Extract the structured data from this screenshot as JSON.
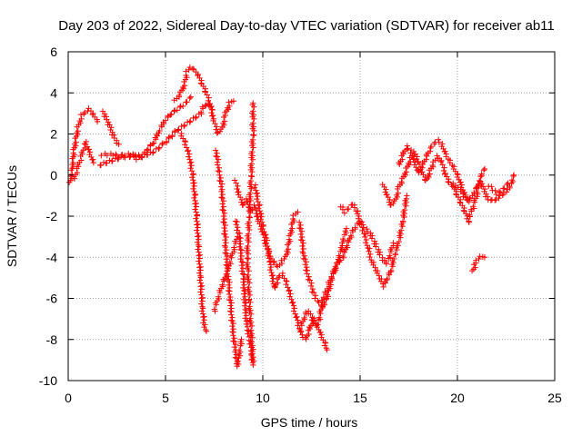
{
  "chart_data": {
    "type": "scatter",
    "title": "Day 203 of 2022, Sidereal Day-to-day VTEC variation (SDTVAR) for receiver ab11",
    "xlabel": "GPS time / hours",
    "ylabel": "SDTVAR / TECUs",
    "xlim": [
      0,
      25
    ],
    "ylim": [
      -10,
      6
    ],
    "xticks": [
      0,
      5,
      10,
      15,
      20,
      25
    ],
    "yticks": [
      -10,
      -8,
      -6,
      -4,
      -2,
      0,
      2,
      4,
      6
    ],
    "grid": true,
    "marker": "+",
    "color": "#ff0000",
    "traces": [
      [
        [
          0.1,
          -0.4
        ],
        [
          0.2,
          0.2
        ],
        [
          0.3,
          1.2
        ],
        [
          0.5,
          2.3
        ],
        [
          0.7,
          2.9
        ],
        [
          0.9,
          3.0
        ],
        [
          1.1,
          3.2
        ],
        [
          1.3,
          2.9
        ],
        [
          1.5,
          2.6
        ]
      ],
      [
        [
          0.3,
          -0.2
        ],
        [
          0.5,
          0.4
        ],
        [
          0.7,
          1.0
        ],
        [
          0.9,
          1.6
        ],
        [
          1.1,
          1.1
        ],
        [
          1.3,
          0.6
        ]
      ],
      [
        [
          1.8,
          3.1
        ],
        [
          2.0,
          2.7
        ],
        [
          2.2,
          2.2
        ],
        [
          2.4,
          1.8
        ],
        [
          2.6,
          1.5
        ]
      ],
      [
        [
          1.6,
          0.5
        ],
        [
          1.9,
          0.6
        ],
        [
          2.2,
          0.7
        ],
        [
          2.5,
          0.8
        ],
        [
          2.8,
          0.9
        ],
        [
          3.1,
          0.9
        ],
        [
          3.4,
          1.0
        ],
        [
          3.7,
          0.9
        ],
        [
          4.0,
          1.0
        ],
        [
          4.3,
          1.1
        ],
        [
          4.6,
          1.3
        ],
        [
          5.0,
          1.6
        ],
        [
          5.3,
          1.9
        ],
        [
          5.6,
          2.2
        ],
        [
          5.9,
          2.4
        ],
        [
          6.2,
          2.6
        ],
        [
          6.5,
          2.8
        ],
        [
          6.8,
          3.0
        ],
        [
          7.0,
          3.4
        ],
        [
          7.2,
          3.5
        ],
        [
          7.4,
          3.2
        ]
      ],
      [
        [
          1.7,
          1.0
        ],
        [
          2.0,
          1.0
        ],
        [
          2.3,
          1.0
        ],
        [
          2.6,
          0.9
        ],
        [
          2.9,
          1.0
        ],
        [
          3.2,
          1.0
        ],
        [
          3.5,
          0.8
        ],
        [
          3.8,
          0.9
        ],
        [
          4.1,
          1.3
        ],
        [
          4.4,
          1.6
        ],
        [
          4.7,
          2.2
        ],
        [
          5.0,
          2.7
        ],
        [
          5.3,
          3.0
        ],
        [
          5.6,
          3.2
        ],
        [
          5.9,
          3.4
        ],
        [
          6.1,
          3.6
        ],
        [
          6.3,
          3.8
        ]
      ],
      [
        [
          5.5,
          3.6
        ],
        [
          5.8,
          4.0
        ],
        [
          6.0,
          4.5
        ],
        [
          6.1,
          5.0
        ],
        [
          6.3,
          5.2
        ],
        [
          6.5,
          5.1
        ],
        [
          6.7,
          4.8
        ],
        [
          6.9,
          4.4
        ],
        [
          7.1,
          4.0
        ],
        [
          7.3,
          3.4
        ],
        [
          7.5,
          2.6
        ],
        [
          7.7,
          2.0
        ],
        [
          7.9,
          2.2
        ],
        [
          8.1,
          3.0
        ],
        [
          8.3,
          3.5
        ],
        [
          8.5,
          3.6
        ]
      ],
      [
        [
          5.8,
          2.0
        ],
        [
          6.0,
          1.6
        ],
        [
          6.2,
          1.0
        ],
        [
          6.4,
          0.0
        ],
        [
          6.5,
          -1.0
        ],
        [
          6.6,
          -2.0
        ],
        [
          6.7,
          -3.5
        ],
        [
          6.8,
          -5.0
        ],
        [
          6.9,
          -6.5
        ],
        [
          7.0,
          -7.3
        ],
        [
          7.1,
          -7.6
        ]
      ],
      [
        [
          7.6,
          1.2
        ],
        [
          7.7,
          0.5
        ],
        [
          7.8,
          0.0
        ],
        [
          7.9,
          -0.8
        ],
        [
          8.0,
          -2.0
        ],
        [
          8.1,
          -3.5
        ],
        [
          8.2,
          -4.8
        ],
        [
          8.3,
          -5.8
        ],
        [
          8.4,
          -6.8
        ],
        [
          8.5,
          -7.8
        ],
        [
          8.6,
          -8.6
        ],
        [
          8.7,
          -9.3
        ],
        [
          8.8,
          -8.7
        ],
        [
          8.9,
          -8.0
        ]
      ],
      [
        [
          7.5,
          -6.6
        ],
        [
          7.7,
          -6.0
        ],
        [
          7.9,
          -5.4
        ],
        [
          8.1,
          -4.9
        ],
        [
          8.3,
          -4.3
        ],
        [
          8.5,
          -3.6
        ],
        [
          8.7,
          -3.0
        ]
      ],
      [
        [
          8.6,
          -2.2
        ],
        [
          8.8,
          -3.0
        ],
        [
          9.0,
          -5.0
        ],
        [
          9.1,
          -6.5
        ],
        [
          9.2,
          -7.5
        ],
        [
          9.3,
          -8.0
        ],
        [
          9.4,
          -8.5
        ],
        [
          9.5,
          -9.2
        ],
        [
          9.4,
          -7.5
        ],
        [
          9.3,
          -6.0
        ],
        [
          9.2,
          -4.0
        ],
        [
          9.3,
          -2.0
        ],
        [
          9.4,
          0.0
        ],
        [
          9.5,
          2.0
        ],
        [
          9.5,
          3.5
        ]
      ],
      [
        [
          8.6,
          -0.3
        ],
        [
          8.8,
          -1.0
        ],
        [
          9.0,
          -1.5
        ],
        [
          9.2,
          -1.2
        ],
        [
          9.4,
          -1.8
        ],
        [
          9.6,
          -1.5
        ],
        [
          9.8,
          -2.3
        ],
        [
          10.0,
          -2.8
        ],
        [
          10.2,
          -3.5
        ],
        [
          10.4,
          -4.0
        ],
        [
          10.6,
          -4.3
        ],
        [
          10.8,
          -4.5
        ],
        [
          11.0,
          -4.2
        ],
        [
          11.2,
          -4.0
        ],
        [
          11.4,
          -3.0
        ],
        [
          11.6,
          -2.0
        ],
        [
          11.8,
          -1.8
        ]
      ],
      [
        [
          9.6,
          -0.5
        ],
        [
          9.8,
          -1.5
        ],
        [
          10.0,
          -2.5
        ],
        [
          10.2,
          -3.2
        ],
        [
          10.4,
          -4.5
        ],
        [
          10.6,
          -5.5
        ],
        [
          10.8,
          -5.0
        ],
        [
          11.0,
          -4.8
        ],
        [
          11.2,
          -5.2
        ],
        [
          11.4,
          -5.8
        ],
        [
          11.6,
          -6.5
        ],
        [
          11.8,
          -7.2
        ],
        [
          12.0,
          -7.8
        ],
        [
          12.2,
          -8.0
        ],
        [
          12.4,
          -7.5
        ],
        [
          12.6,
          -7.0
        ],
        [
          12.8,
          -7.3
        ],
        [
          13.0,
          -7.8
        ],
        [
          13.2,
          -8.2
        ],
        [
          13.3,
          -8.5
        ]
      ],
      [
        [
          11.9,
          -2.3
        ],
        [
          12.1,
          -3.8
        ],
        [
          12.3,
          -4.8
        ],
        [
          12.5,
          -5.4
        ],
        [
          12.7,
          -6.0
        ],
        [
          12.9,
          -6.2
        ],
        [
          13.1,
          -6.4
        ],
        [
          13.3,
          -6.0
        ],
        [
          13.5,
          -5.2
        ],
        [
          13.7,
          -4.6
        ],
        [
          13.9,
          -4.1
        ],
        [
          14.1,
          -3.3
        ],
        [
          14.3,
          -2.6
        ]
      ],
      [
        [
          11.9,
          -7.6
        ],
        [
          12.1,
          -7.0
        ],
        [
          12.3,
          -6.6
        ],
        [
          12.5,
          -6.9
        ],
        [
          12.7,
          -7.3
        ],
        [
          12.9,
          -7.0
        ],
        [
          13.1,
          -6.0
        ],
        [
          13.3,
          -5.6
        ],
        [
          13.5,
          -5.0
        ],
        [
          13.7,
          -4.6
        ],
        [
          13.9,
          -4.2
        ],
        [
          14.1,
          -4.0
        ],
        [
          14.3,
          -3.5
        ],
        [
          14.5,
          -3.0
        ],
        [
          14.7,
          -2.6
        ],
        [
          14.9,
          -2.3
        ],
        [
          15.1,
          -2.4
        ],
        [
          15.3,
          -2.6
        ],
        [
          15.5,
          -2.8
        ],
        [
          15.7,
          -3.2
        ],
        [
          15.9,
          -3.6
        ],
        [
          16.1,
          -4.0
        ],
        [
          16.3,
          -4.3
        ],
        [
          16.5,
          -4.0
        ],
        [
          16.7,
          -3.3
        ]
      ],
      [
        [
          14.0,
          -1.5
        ],
        [
          14.2,
          -1.8
        ],
        [
          14.4,
          -1.6
        ],
        [
          14.6,
          -1.4
        ],
        [
          14.8,
          -1.7
        ],
        [
          15.0,
          -2.2
        ],
        [
          15.2,
          -2.8
        ],
        [
          15.4,
          -3.5
        ],
        [
          15.6,
          -4.2
        ],
        [
          15.8,
          -4.6
        ],
        [
          16.0,
          -5.0
        ],
        [
          16.2,
          -5.4
        ],
        [
          16.4,
          -5.0
        ],
        [
          16.6,
          -4.6
        ],
        [
          16.8,
          -3.8
        ],
        [
          17.0,
          -3.2
        ],
        [
          17.2,
          -2.2
        ],
        [
          17.4,
          -1.0
        ]
      ],
      [
        [
          16.2,
          -0.5
        ],
        [
          16.4,
          -1.0
        ],
        [
          16.6,
          -1.5
        ],
        [
          16.8,
          -1.3
        ],
        [
          17.0,
          -0.6
        ],
        [
          17.2,
          -0.2
        ],
        [
          17.4,
          0.3
        ],
        [
          17.6,
          0.8
        ],
        [
          17.8,
          1.1
        ],
        [
          18.0,
          0.6
        ],
        [
          18.2,
          0.1
        ],
        [
          18.4,
          -0.3
        ],
        [
          18.6,
          0.2
        ],
        [
          18.8,
          0.6
        ],
        [
          19.0,
          0.9
        ],
        [
          19.2,
          0.6
        ],
        [
          19.4,
          0.0
        ],
        [
          19.6,
          -0.4
        ],
        [
          19.8,
          -0.6
        ],
        [
          20.0,
          -1.0
        ],
        [
          20.2,
          -1.4
        ],
        [
          20.4,
          -1.8
        ],
        [
          20.6,
          -2.3
        ]
      ],
      [
        [
          17.0,
          0.5
        ],
        [
          17.2,
          1.0
        ],
        [
          17.4,
          1.4
        ],
        [
          17.6,
          1.2
        ],
        [
          17.8,
          0.6
        ],
        [
          18.0,
          0.1
        ],
        [
          18.2,
          0.5
        ],
        [
          18.4,
          0.9
        ],
        [
          18.6,
          1.3
        ],
        [
          18.8,
          1.5
        ],
        [
          19.0,
          1.7
        ],
        [
          19.2,
          1.5
        ],
        [
          19.4,
          1.0
        ],
        [
          19.6,
          0.7
        ],
        [
          19.8,
          0.4
        ],
        [
          20.0,
          0.0
        ],
        [
          20.2,
          -0.5
        ],
        [
          20.4,
          -1.0
        ],
        [
          20.6,
          -1.3
        ]
      ],
      [
        [
          19.8,
          -0.4
        ],
        [
          20.2,
          -0.8
        ],
        [
          20.5,
          -1.2
        ],
        [
          20.8,
          -1.0
        ],
        [
          21.0,
          -0.6
        ],
        [
          21.2,
          -0.3
        ],
        [
          21.4,
          -0.8
        ],
        [
          21.6,
          -1.2
        ],
        [
          21.8,
          -1.2
        ],
        [
          22.0,
          -1.2
        ],
        [
          22.2,
          -1.0
        ],
        [
          22.4,
          -0.9
        ],
        [
          22.6,
          -0.7
        ],
        [
          22.8,
          -0.4
        ],
        [
          22.9,
          0.0
        ]
      ],
      [
        [
          20.6,
          -2.0
        ],
        [
          20.8,
          -1.6
        ],
        [
          21.0,
          -0.9
        ],
        [
          21.2,
          0.0
        ],
        [
          21.4,
          0.3
        ]
      ],
      [
        [
          21.6,
          -0.5
        ],
        [
          21.8,
          -0.7
        ],
        [
          22.0,
          -0.9
        ],
        [
          22.2,
          -0.8
        ],
        [
          22.4,
          -0.6
        ],
        [
          22.6,
          -0.4
        ]
      ],
      [
        [
          20.8,
          -4.7
        ],
        [
          20.9,
          -4.4
        ],
        [
          21.0,
          -4.2
        ],
        [
          21.2,
          -4.0
        ],
        [
          21.4,
          -4.0
        ]
      ]
    ]
  }
}
